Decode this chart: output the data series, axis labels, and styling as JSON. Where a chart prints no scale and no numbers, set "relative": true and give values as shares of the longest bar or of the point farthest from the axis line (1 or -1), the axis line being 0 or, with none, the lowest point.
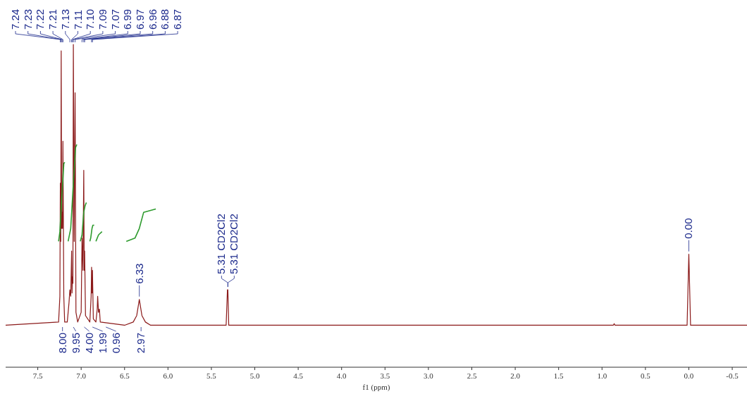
{
  "chart_data": {
    "type": "line",
    "relative": true,
    "xlabel": "f1 (ppm)",
    "xlim": [
      7.87,
      -0.67
    ],
    "xticks": [
      7.5,
      {
        "value": 7,
        "label": "7.0"
      },
      6.5,
      {
        "value": 6,
        "label": "6.0"
      },
      5.5,
      {
        "value": 5,
        "label": "5.0"
      },
      4.5,
      {
        "value": 4,
        "label": "4.0"
      },
      3.5,
      {
        "value": 3,
        "label": "3.0"
      },
      2.5,
      {
        "value": 2,
        "label": "2.0"
      },
      1.5,
      {
        "value": 1,
        "label": "1.0"
      },
      0.5,
      {
        "value": 0,
        "label": "0.0"
      },
      -0.5
    ],
    "marker": "none",
    "line_style": "solid",
    "series": [
      {
        "color": "#8b1a1a",
        "x": [
          7.87,
          7.26,
          7.245,
          7.24,
          7.235,
          7.23,
          7.225,
          7.22,
          7.215,
          7.21,
          7.2,
          7.19,
          7.16,
          7.14,
          7.13,
          7.12,
          7.11,
          7.105,
          7.1,
          7.095,
          7.09,
          7.08,
          7.07,
          7.06,
          7.04,
          7.0,
          6.99,
          6.98,
          6.97,
          6.965,
          6.96,
          6.95,
          6.9,
          6.885,
          6.88,
          6.875,
          6.87,
          6.86,
          6.83,
          6.815,
          6.81,
          6.8,
          6.79,
          6.78,
          6.5,
          6.4,
          6.36,
          6.33,
          6.3,
          6.26,
          6.2,
          5.33,
          5.315,
          5.31,
          5.3,
          0.87,
          0.86,
          0.85,
          0.02,
          0,
          -0.02,
          -0.67
        ],
        "values": [
          0.13,
          0.14,
          0.22,
          0.57,
          0.39,
          0.98,
          0.43,
          0.48,
          0.43,
          0.7,
          0.22,
          0.14,
          0.14,
          0.2,
          0.24,
          0.22,
          0.36,
          0.23,
          0.28,
          0.26,
          1,
          0.39,
          0.85,
          0.17,
          0.14,
          0.17,
          0.4,
          0.3,
          0.61,
          0.3,
          0.36,
          0.16,
          0.14,
          0.22,
          0.31,
          0.23,
          0.3,
          0.15,
          0.14,
          0.18,
          0.22,
          0.17,
          0.18,
          0.14,
          0.13,
          0.14,
          0.16,
          0.21,
          0.16,
          0.14,
          0.13,
          0.13,
          0.24,
          0.24,
          0.13,
          0.13,
          0.135,
          0.13,
          0.13,
          0.35,
          0.13,
          0.13
        ]
      },
      {
        "color": "#2e9b2e",
        "x": [
          7.26,
          7.245,
          7.225,
          7.2,
          7.19,
          7.17,
          7.15,
          7.12,
          7.09,
          7.065,
          7.05,
          7.03,
          7.01,
          6.99,
          6.97,
          6.955,
          6.94,
          6.92,
          6.9,
          6.89,
          6.875,
          6.865,
          6.85,
          6.84,
          6.83,
          6.8,
          6.76,
          6.6,
          6.48,
          6.38,
          6.33,
          6.28,
          6.14
        ],
        "values": [
          0.39,
          0.42,
          0.52,
          0.63,
          0.635,
          null,
          0.39,
          0.43,
          0.57,
          0.68,
          0.69,
          null,
          0.39,
          0.41,
          0.48,
          0.5,
          0.51,
          null,
          0.39,
          0.4,
          0.43,
          0.44,
          0.44,
          null,
          0.39,
          0.41,
          0.42,
          null,
          0.39,
          0.4,
          0.43,
          0.48,
          0.49
        ]
      }
    ],
    "annotations": [
      {
        "text": "7.24",
        "x": 7.24
      },
      {
        "text": "7.23",
        "x": 7.23
      },
      {
        "text": "7.22",
        "x": 7.22
      },
      {
        "text": "7.21",
        "x": 7.21
      },
      {
        "text": "7.13",
        "x": 7.13
      },
      {
        "text": "7.11",
        "x": 7.11
      },
      {
        "text": "7.10",
        "x": 7.1
      },
      {
        "text": "7.09",
        "x": 7.09
      },
      {
        "text": "7.07",
        "x": 7.07
      },
      {
        "text": "6.99",
        "x": 6.99
      },
      {
        "text": "6.97",
        "x": 6.97
      },
      {
        "text": "6.96",
        "x": 6.96
      },
      {
        "text": "6.88",
        "x": 6.88
      },
      {
        "text": "6.87",
        "x": 6.87
      },
      {
        "text": "6.33",
        "x": 6.33,
        "y": 0.21
      },
      {
        "text": "5.31 CD2Cl2",
        "x": 5.31,
        "y": 0.24
      },
      {
        "text": "5.31 CD2Cl2",
        "x": 5.31,
        "y": 0.24
      },
      {
        "text": "0.00",
        "x": 0,
        "y": 0.35
      },
      "8.00",
      "9.95",
      "4.00",
      "1.99",
      "0.96",
      "2.97"
    ]
  }
}
